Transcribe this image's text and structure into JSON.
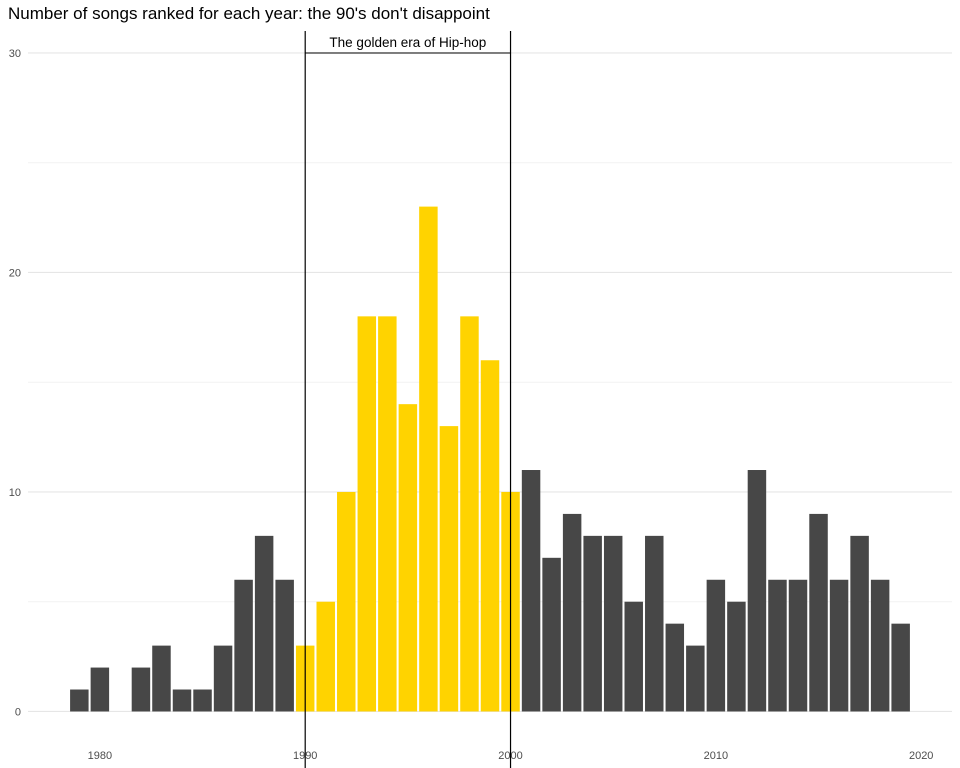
{
  "chart_data": {
    "type": "bar",
    "title": "Number of songs ranked for each year: the 90's don't disappoint",
    "xlabel": "",
    "ylabel": "",
    "x": [
      1979,
      1980,
      1982,
      1983,
      1984,
      1985,
      1986,
      1987,
      1988,
      1989,
      1990,
      1991,
      1992,
      1993,
      1994,
      1995,
      1996,
      1997,
      1998,
      1999,
      2000,
      2001,
      2002,
      2003,
      2004,
      2005,
      2006,
      2007,
      2008,
      2009,
      2010,
      2011,
      2012,
      2013,
      2014,
      2015,
      2016,
      2017,
      2018,
      2019
    ],
    "values": [
      1,
      2,
      2,
      3,
      1,
      1,
      3,
      6,
      8,
      6,
      3,
      5,
      10,
      18,
      18,
      14,
      23,
      13,
      18,
      16,
      10,
      11,
      7,
      9,
      8,
      8,
      5,
      8,
      4,
      3,
      6,
      5,
      11,
      6,
      6,
      9,
      6,
      8,
      6,
      4
    ],
    "xlim": [
      1976.5,
      2021.5
    ],
    "ylim": [
      -1.3,
      31
    ],
    "xticks": [
      1980,
      1990,
      2000,
      2010,
      2020
    ],
    "yticks": [
      0,
      10,
      20,
      30
    ],
    "grid": true,
    "colors": {
      "highlight": "#FFD300",
      "default": "#474747",
      "grid": "#e6e6e6"
    },
    "highlight_range": [
      1990,
      2000
    ],
    "annotation": {
      "text": "The golden era of Hip-hop",
      "x_start": 1990,
      "x_end": 2000,
      "y": 30
    }
  }
}
